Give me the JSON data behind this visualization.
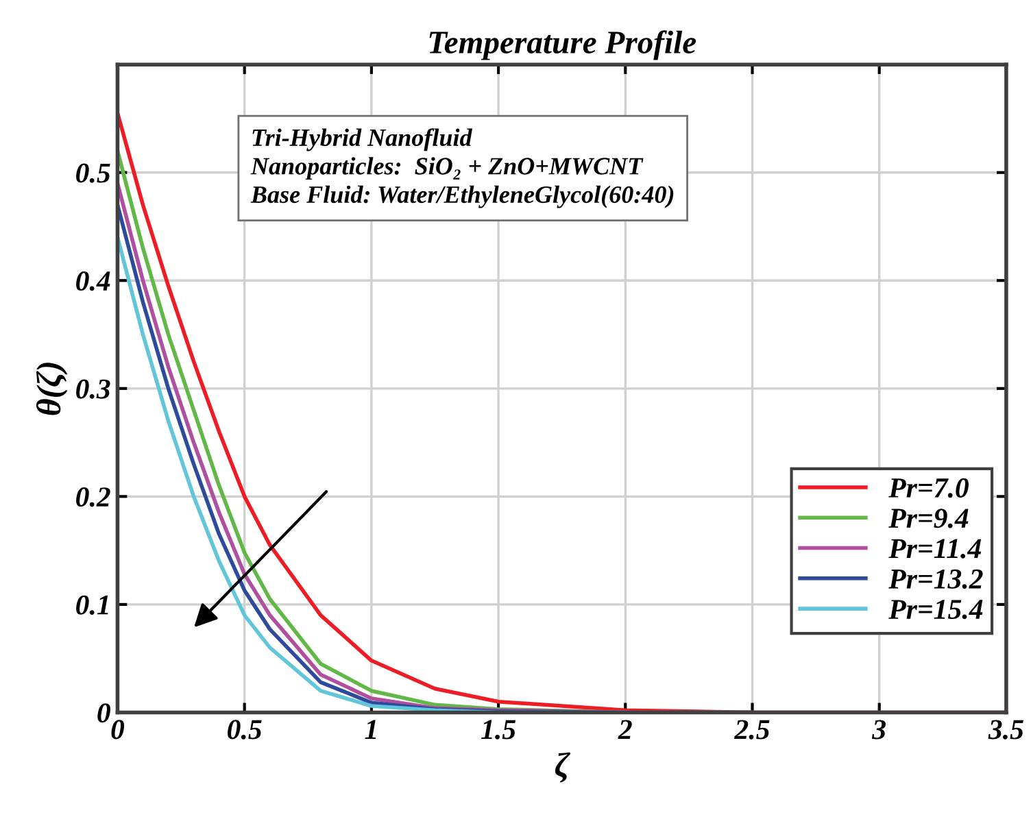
{
  "chart_data": {
    "type": "line",
    "title": "Temperature Profile",
    "xlabel": "ζ",
    "ylabel": "θ(ζ)",
    "x": [
      0,
      0.1,
      0.2,
      0.3,
      0.4,
      0.5,
      0.6,
      0.8,
      1.0,
      1.25,
      1.5,
      2,
      2.5,
      3,
      3.5
    ],
    "series": [
      {
        "name": "Pr=7.0",
        "color": "#ee1c24",
        "values": [
          0.555,
          0.47,
          0.395,
          0.325,
          0.26,
          0.2,
          0.155,
          0.09,
          0.048,
          0.022,
          0.01,
          0.002,
          0,
          0,
          0
        ]
      },
      {
        "name": "Pr=9.4",
        "color": "#62b846",
        "values": [
          0.52,
          0.43,
          0.35,
          0.28,
          0.21,
          0.148,
          0.105,
          0.045,
          0.02,
          0.007,
          0.003,
          0,
          0,
          null,
          null
        ]
      },
      {
        "name": "Pr=11.4",
        "color": "#b04ea0",
        "values": [
          0.49,
          0.4,
          0.32,
          0.25,
          0.185,
          0.128,
          0.09,
          0.035,
          0.013,
          0.004,
          0.002,
          0,
          0,
          0,
          0
        ]
      },
      {
        "name": "Pr=13.2",
        "color": "#2e4a9c",
        "values": [
          0.47,
          0.38,
          0.3,
          0.23,
          0.165,
          0.113,
          0.077,
          0.028,
          0.009,
          0.003,
          0.001,
          0,
          0,
          null,
          null
        ]
      },
      {
        "name": "Pr=15.4",
        "color": "#62c6da",
        "values": [
          0.44,
          0.35,
          0.27,
          0.2,
          0.14,
          0.09,
          0.06,
          0.02,
          0.006,
          0.002,
          0,
          0,
          null,
          null,
          null
        ]
      }
    ],
    "annotations": [
      "Tri-Hybrid Nanofluid",
      "Nanoparticles:  SiO₂ + ZnO+MWCNT",
      "Base Fluid: Water/EthyleneGlycol(60:40)"
    ],
    "xlim": [
      0,
      3.5
    ],
    "xticks": [
      0,
      0.5,
      1,
      1.5,
      2,
      2.5,
      3,
      3.5
    ],
    "ylim": [
      0,
      0.6
    ],
    "yticks": [
      0,
      0.1,
      0.2,
      0.3,
      0.4,
      0.5
    ],
    "grid": true,
    "legend": "bottom right",
    "marker": "none",
    "line_style": "solid"
  }
}
